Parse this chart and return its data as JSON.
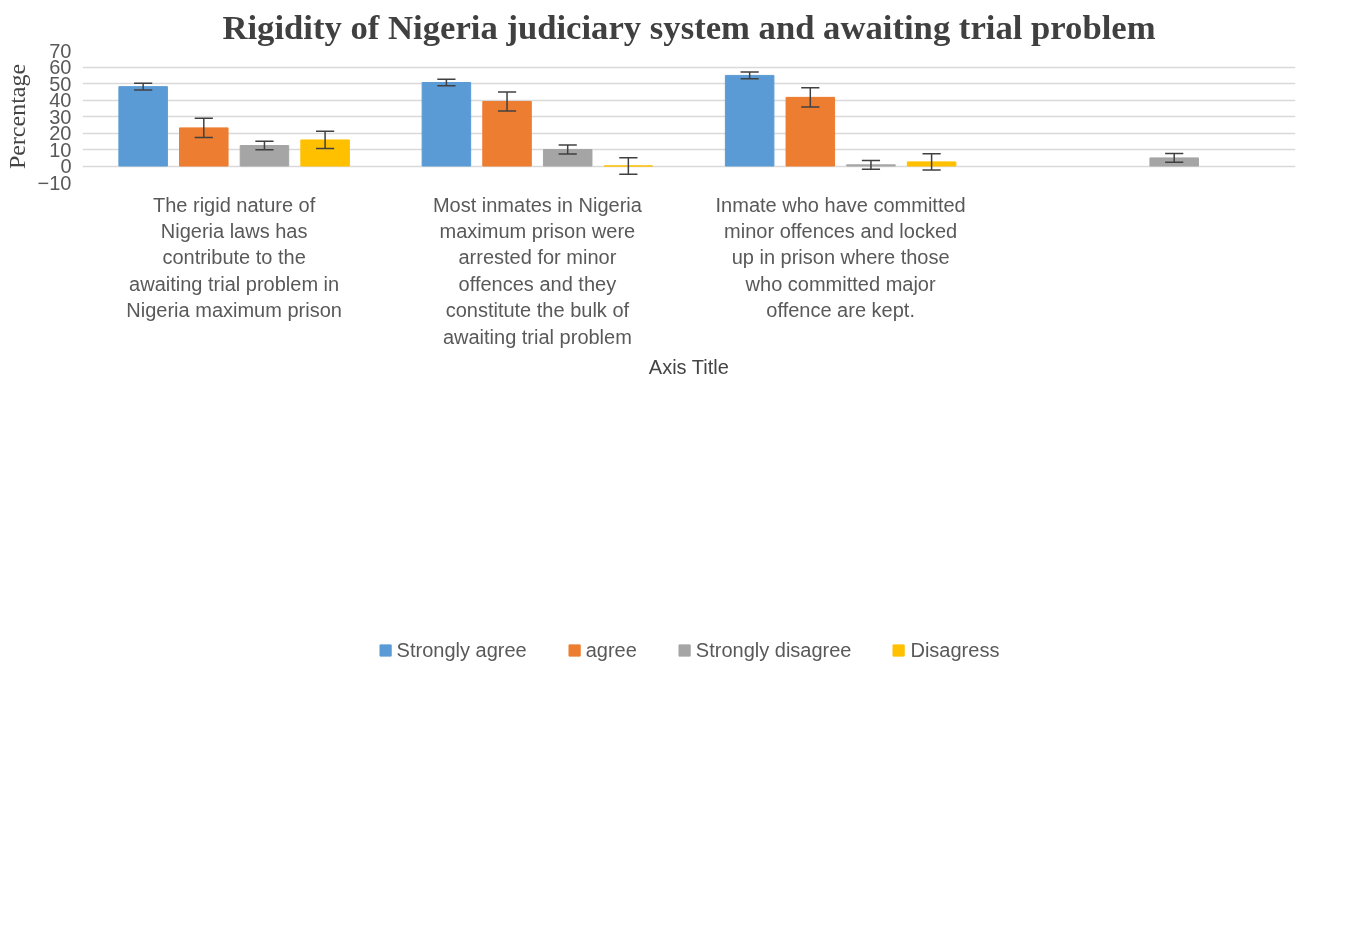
{
  "chart_data": {
    "type": "bar",
    "title": "Rigidity of Nigeria judiciary system and awaiting trial problem",
    "xlabel": "Axis Title",
    "ylabel": "Percentage",
    "categories": [
      "The rigid nature of Nigeria laws has contribute to the awaiting trial problem in Nigeria maximum prison",
      "Most inmates in Nigeria maximum prison were arrested for minor offences and they constitute the bulk of awaiting trial problem",
      "Inmate who have committed minor offences and locked up in prison where those who committed major offence are kept.",
      null
    ],
    "series": [
      {
        "name": "Strongly agree",
        "color": "#5b9bd5",
        "values": [
          48.1,
          50.6,
          54.9,
          null
        ],
        "errors": [
          2,
          2,
          2,
          null
        ]
      },
      {
        "name": "agree",
        "color": "#ed7d31",
        "values": [
          23.1,
          39.1,
          41.6,
          null
        ],
        "errors": [
          5.8,
          5.8,
          5.8,
          null
        ]
      },
      {
        "name": "Strongly disagree",
        "color": "#a5a5a5",
        "values": [
          12.4,
          10.0,
          0.7,
          4.9
        ],
        "errors": [
          2.6,
          2.7,
          2.7,
          2.7
        ]
      },
      {
        "name": "Disagress",
        "color": "#ffc000",
        "values": [
          15.8,
          0,
          2.5,
          null
        ],
        "errors": [
          5.2,
          5,
          4.9,
          null
        ]
      }
    ],
    "ylim": [
      -10,
      70
    ],
    "yticks": [
      -10,
      0,
      10,
      20,
      30,
      40,
      50,
      60,
      70
    ],
    "grid": "y",
    "legend": "bottom"
  }
}
